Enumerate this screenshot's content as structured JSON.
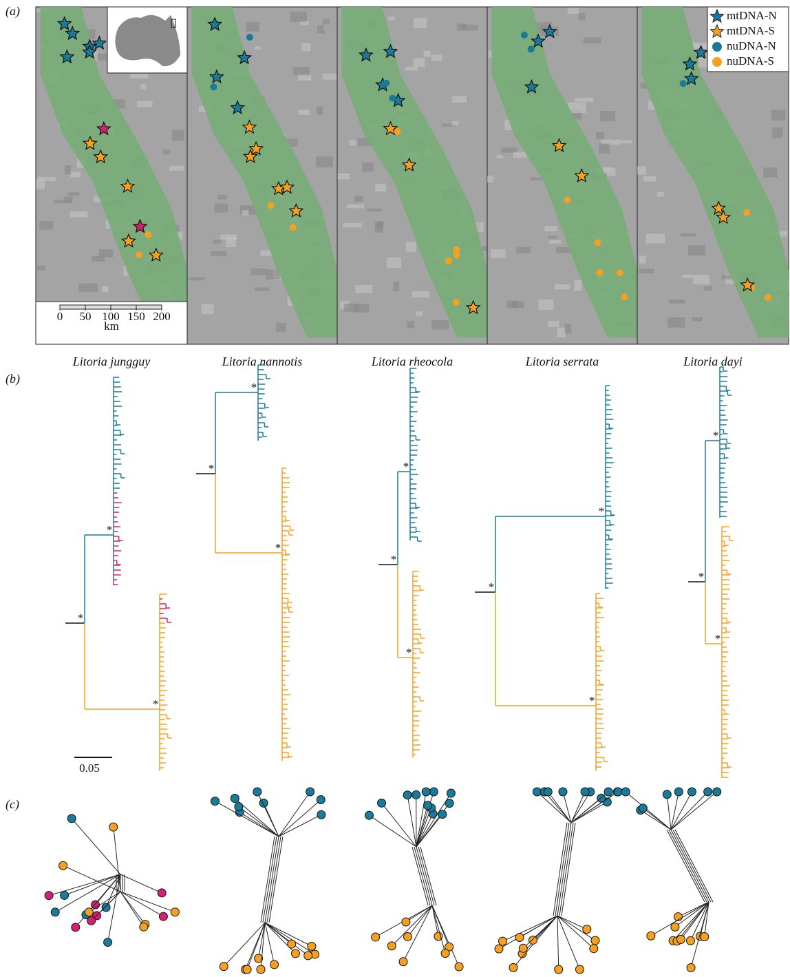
{
  "panel_labels": {
    "a": "(a)",
    "b": "(b)",
    "c": "(c)"
  },
  "species": [
    "Litoria jungguy",
    "Litoria nannotis",
    "Litoria rheocola",
    "Litoria serrata",
    "Litoria dayi"
  ],
  "legend": [
    "mtDNA-N",
    "mtDNA-S",
    "nuDNA-N",
    "nuDNA-S"
  ],
  "map_scale": {
    "ticks": [
      0,
      50,
      100,
      150,
      200
    ],
    "unit": "km"
  },
  "tree_scale": "0.05",
  "support_marker": "*"
}
